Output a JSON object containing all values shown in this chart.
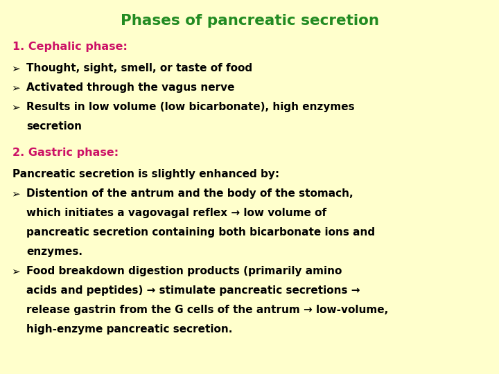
{
  "title": "Phases of pancreatic secretion",
  "title_color": "#228B22",
  "title_fontsize": 15.5,
  "background_color": "#FFFFCC",
  "text_color": "#000000",
  "heading_color": "#CC1166",
  "body_fontsize": 11.0,
  "heading_fontsize": 11.5,
  "bullet_char": "➢",
  "lines": [
    {
      "type": "heading",
      "text": "1. Cephalic phase:"
    },
    {
      "type": "bullet",
      "text": "Thought, sight, smell, or taste of food"
    },
    {
      "type": "bullet",
      "text": "Activated through the vagus nerve"
    },
    {
      "type": "bullet_wrap",
      "line1": "Results in low volume (low bicarbonate), high enzymes",
      "line2": "secretion"
    },
    {
      "type": "spacer"
    },
    {
      "type": "heading",
      "text": "2. Gastric phase:"
    },
    {
      "type": "body",
      "text": "Pancreatic secretion is slightly enhanced by:"
    },
    {
      "type": "bullet_wrap",
      "line1": "Distention of the antrum and the body of the stomach,",
      "line2": "which initiates a vagovagal reflex → low volume of",
      "line3": "pancreatic secretion containing both bicarbonate ions and",
      "line4": "enzymes."
    },
    {
      "type": "bullet_wrap",
      "line1": "Food breakdown digestion products (primarily amino",
      "line2": "acids and peptides) → stimulate pancreatic secretions →",
      "line3": "release gastrin from the G cells of the antrum → low-volume,",
      "line4": "high-enzyme pancreatic secretion."
    }
  ]
}
